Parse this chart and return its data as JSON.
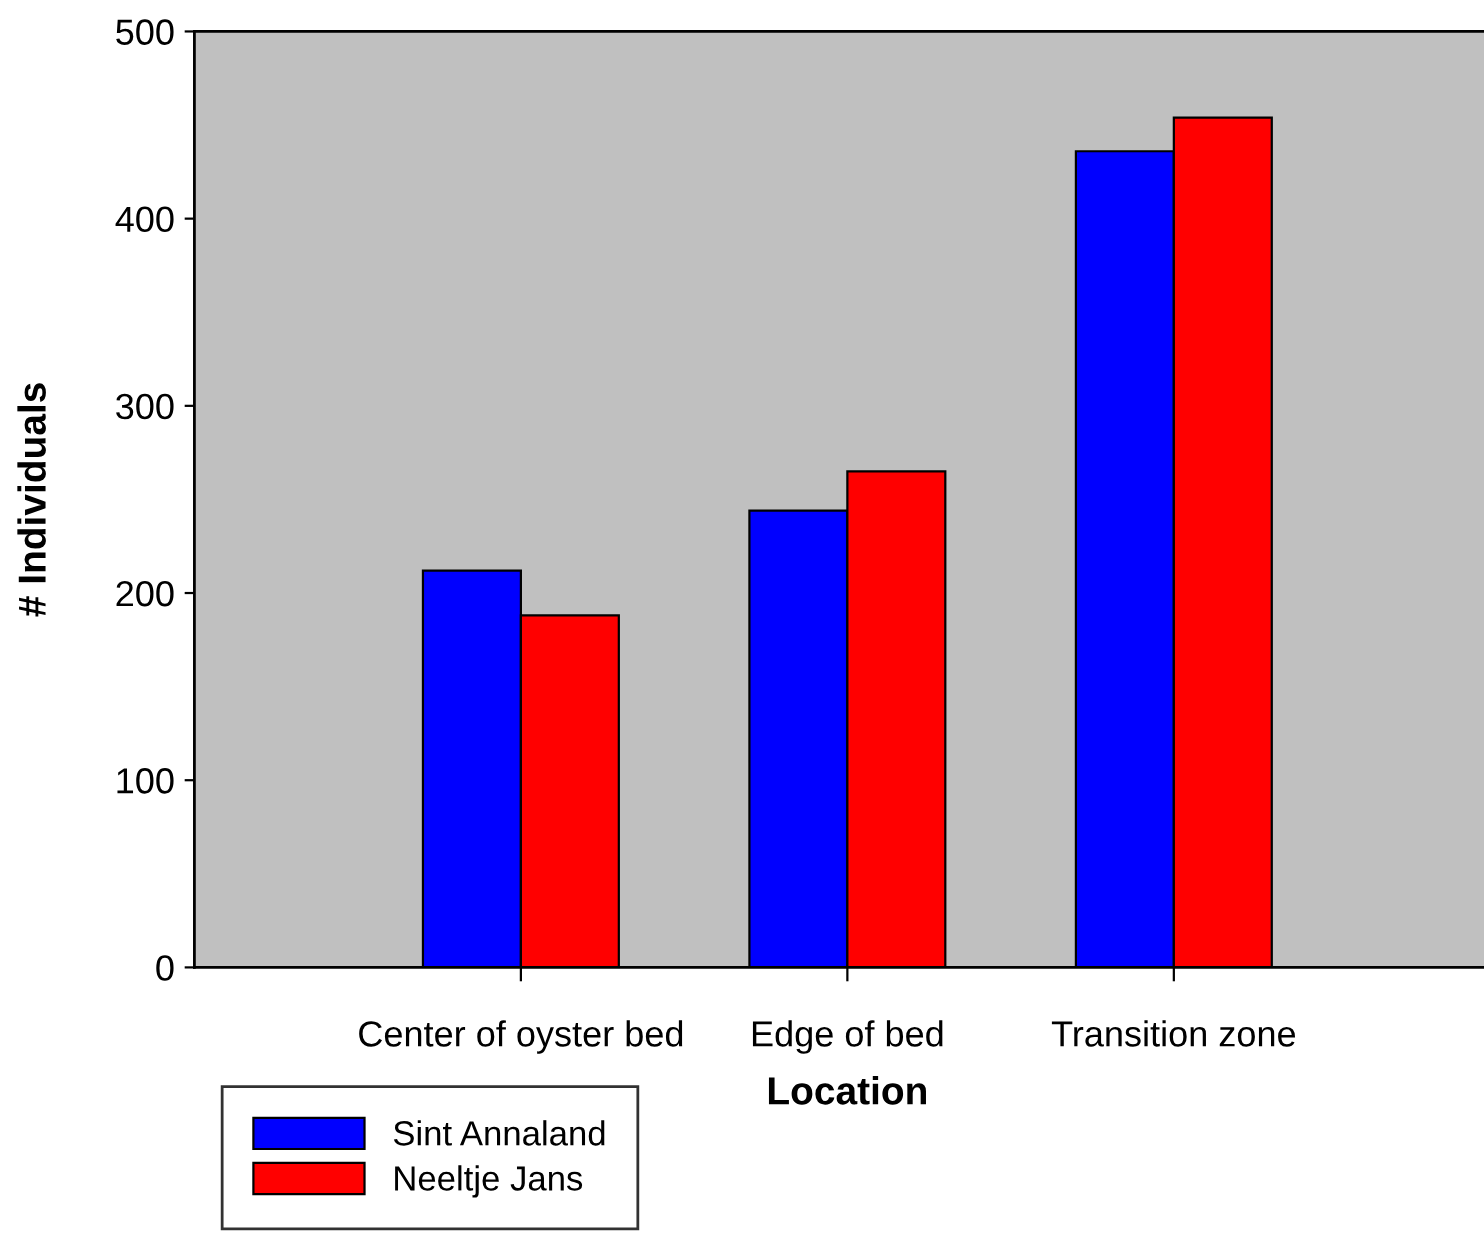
{
  "chart_data": {
    "type": "bar",
    "xlabel": "Location",
    "ylabel": "# Individuals",
    "categories": [
      null,
      "Center of oyster bed",
      "Edge of bed",
      "Transition zone"
    ],
    "series": [
      {
        "name": "Sint Annaland",
        "color": "#0000ff",
        "values": [
          null,
          212,
          244,
          436
        ]
      },
      {
        "name": "Neeltje Jans",
        "color": "#ff0000",
        "values": [
          null,
          188,
          265,
          454
        ]
      }
    ],
    "ylim": [
      0,
      500
    ],
    "yticks": [
      0,
      100,
      200,
      300,
      400,
      500
    ],
    "grid": false,
    "legend": "bottom left"
  }
}
